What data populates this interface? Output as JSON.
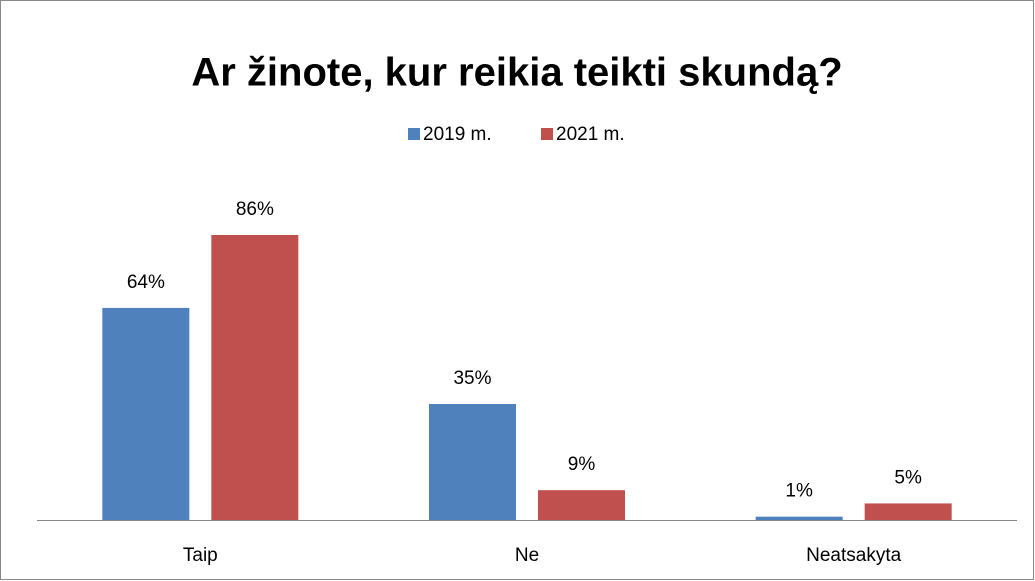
{
  "chart_data": {
    "type": "bar",
    "title": "Ar žinote, kur reikia teikti skundą?",
    "categories": [
      "Taip",
      "Ne",
      "Neatsakyta"
    ],
    "series": [
      {
        "name": "2019 m.",
        "color": "#4f81bd",
        "values": [
          64,
          35,
          1
        ],
        "value_labels": [
          "64%",
          "35%",
          "1%"
        ]
      },
      {
        "name": "2021 m.",
        "color": "#c0504d",
        "values": [
          86,
          9,
          5
        ],
        "value_labels": [
          "86%",
          "9%",
          "5%"
        ]
      }
    ]
  }
}
